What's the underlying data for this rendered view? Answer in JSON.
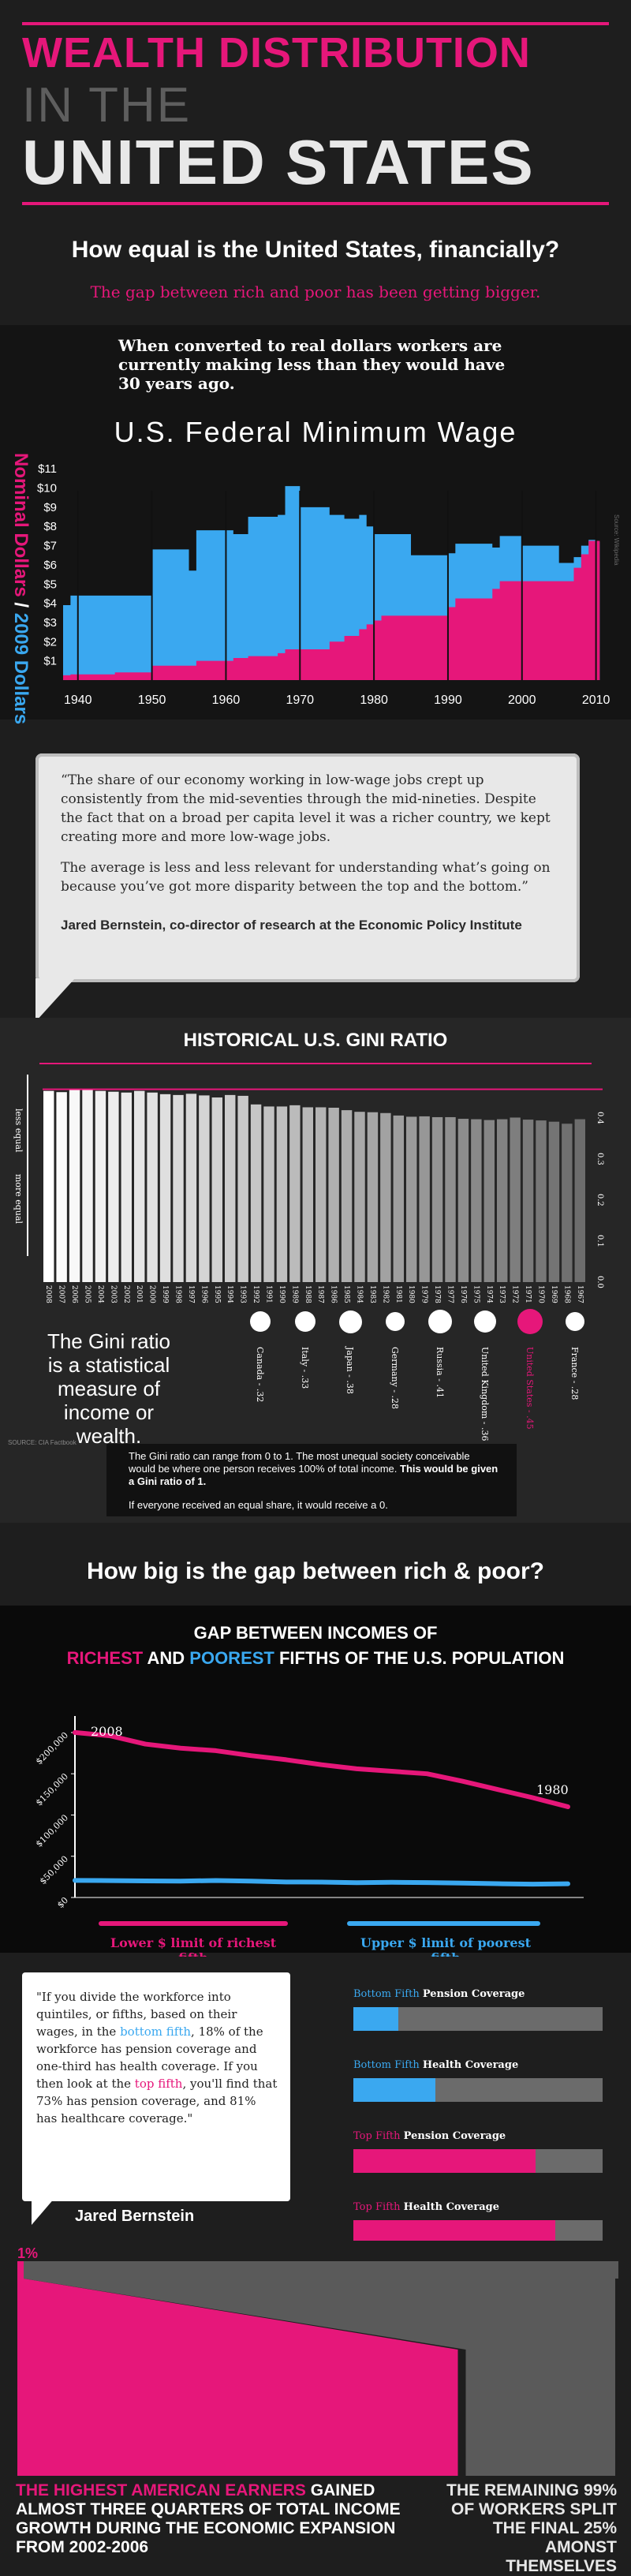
{
  "header": {
    "title_line1": "WEALTH DISTRIBUTION",
    "title_line2": "IN THE",
    "title_line3": "UNITED STATES"
  },
  "intro": {
    "question": "How equal is the United States, financially?",
    "subtitle": "The gap between rich and poor has been getting bigger.",
    "wage_note": "When converted to real dollars workers are currently making less than they would have 30 years ago."
  },
  "wage_chart": {
    "title": "U.S. Federal Minimum Wage",
    "ylabel_nominal": "Nominal Dollars",
    "ylabel_sep": " / ",
    "ylabel_real": "2009 Dollars",
    "source": "Source: Wikipedia",
    "colors": {
      "real": "#3aa8f0",
      "nominal": "#e6177a"
    }
  },
  "chart_data": [
    {
      "type": "area",
      "title": "U.S. Federal Minimum Wage",
      "ylabel": "Nominal Dollars / 2009 Dollars",
      "x": [
        1938,
        1939,
        1945,
        1950,
        1955,
        1956,
        1961,
        1963,
        1967,
        1968,
        1970,
        1974,
        1976,
        1978,
        1979,
        1980,
        1981,
        1985,
        1990,
        1991,
        1996,
        1997,
        2000,
        2005,
        2007,
        2008,
        2009,
        2010
      ],
      "series": [
        {
          "name": "2009 Dollars",
          "values": [
            3.9,
            4.4,
            4.4,
            6.8,
            5.7,
            7.8,
            7.6,
            8.5,
            8.6,
            10.1,
            9.0,
            8.6,
            8.4,
            8.6,
            8.0,
            7.6,
            7.6,
            6.5,
            6.6,
            7.1,
            6.9,
            7.5,
            7.0,
            6.1,
            6.4,
            7.0,
            7.3,
            7.2
          ]
        },
        {
          "name": "Nominal Dollars",
          "values": [
            0.25,
            0.3,
            0.4,
            0.75,
            0.75,
            1.0,
            1.15,
            1.25,
            1.4,
            1.6,
            1.6,
            2.0,
            2.3,
            2.65,
            2.9,
            3.1,
            3.35,
            3.35,
            3.8,
            4.25,
            4.75,
            5.15,
            5.15,
            5.15,
            5.85,
            6.55,
            7.25,
            7.25
          ]
        }
      ],
      "yticks": [
        "$1",
        "$2",
        "$3",
        "$4",
        "$5",
        "$6",
        "$7",
        "$8",
        "$9",
        "$10",
        "$11"
      ],
      "xticks": [
        "1940",
        "1950",
        "1960",
        "1970",
        "1980",
        "1990",
        "2000",
        "2010"
      ],
      "ylim": [
        0,
        11.5
      ]
    },
    {
      "type": "bar",
      "title": "HISTORICAL U.S. GINI RATIO",
      "categories": [
        "2008",
        "2007",
        "2006",
        "2005",
        "2004",
        "2003",
        "2002",
        "2001",
        "2000",
        "1999",
        "1998",
        "1997",
        "1996",
        "1995",
        "1994",
        "1993",
        "1992",
        "1991",
        "1990",
        "1989",
        "1988",
        "1987",
        "1986",
        "1985",
        "1984",
        "1983",
        "1982",
        "1981",
        "1980",
        "1979",
        "1978",
        "1977",
        "1976",
        "1975",
        "1974",
        "1973",
        "1972",
        "1971",
        "1970",
        "1969",
        "1968",
        "1967"
      ],
      "values": [
        0.466,
        0.463,
        0.47,
        0.469,
        0.466,
        0.464,
        0.462,
        0.466,
        0.462,
        0.458,
        0.456,
        0.459,
        0.455,
        0.45,
        0.456,
        0.454,
        0.433,
        0.428,
        0.428,
        0.431,
        0.426,
        0.426,
        0.425,
        0.419,
        0.415,
        0.414,
        0.412,
        0.406,
        0.403,
        0.404,
        0.402,
        0.402,
        0.398,
        0.397,
        0.395,
        0.397,
        0.401,
        0.396,
        0.394,
        0.391,
        0.386,
        0.397
      ],
      "yticks": [
        "0.0",
        "0.1",
        "0.2",
        "0.3",
        "0.4"
      ],
      "ylim": [
        0,
        0.5
      ]
    },
    {
      "type": "line",
      "title": "GAP BETWEEN INCOMES OF RICHEST AND POOREST FIFTHS OF THE U.S. POPULATION",
      "x": [
        2008,
        2006,
        2004,
        2002,
        2000,
        1998,
        1996,
        1994,
        1992,
        1990,
        1988,
        1986,
        1984,
        1982,
        1980
      ],
      "series": [
        {
          "name": "Lower $ limit of richest fifth",
          "values": [
            200000,
            196000,
            186000,
            181000,
            178000,
            172000,
            167000,
            161000,
            156000,
            153000,
            150000,
            141000,
            131000,
            121000,
            110000
          ]
        },
        {
          "name": "Upper $ limit of poorest fifth",
          "values": [
            20700,
            20500,
            20100,
            19800,
            20600,
            19800,
            18800,
            18600,
            17900,
            18400,
            18100,
            17500,
            16700,
            16200,
            16600
          ]
        }
      ],
      "yticks": [
        "$0",
        "$50,000",
        "$100,000",
        "$150,000",
        "$200,000"
      ],
      "ylim": [
        0,
        220000
      ]
    }
  ],
  "quote1": {
    "p1": "“The share of our economy working in low-wage jobs crept up consistently from the mid-seventies through the mid-nineties. Despite the fact that on a broad per capita level it was a richer country, we kept creating more and more low-wage jobs.",
    "p2": "The average is less and less relevant for understanding what’s going on because you’ve got more disparity between the top and the bottom.”",
    "attribution": "Jared Bernstein, co-director of research at the Economic Policy Institute"
  },
  "gini": {
    "title": "HISTORICAL U.S. GINI RATIO",
    "less_equal": "less equal",
    "more_equal": "more equal",
    "definition": "The Gini ratio is a statistical measure of income or wealth.",
    "source": "SOURCE: CIA Factbook",
    "note1": "The Gini ratio can range from 0 to 1. The most unequal society conceivable would be where one person receives 100% of total income.",
    "note1_bold": "This would be given a Gini ratio of 1.",
    "note2": "If everyone received an equal share, it would receive a 0.",
    "countries": [
      {
        "label": "Canada - .32",
        "value": 0.32,
        "color": "#ffffff"
      },
      {
        "label": "Italy - .33",
        "value": 0.33,
        "color": "#ffffff"
      },
      {
        "label": "Japan - .38",
        "value": 0.38,
        "color": "#ffffff"
      },
      {
        "label": "Germany - .28",
        "value": 0.28,
        "color": "#ffffff"
      },
      {
        "label": "Russia - .41",
        "value": 0.41,
        "color": "#ffffff"
      },
      {
        "label": "United Kingdom - .36",
        "value": 0.36,
        "color": "#ffffff"
      },
      {
        "label": "United States - .45",
        "value": 0.45,
        "color": "#e6177a"
      },
      {
        "label": "France - .28",
        "value": 0.28,
        "color": "#ffffff"
      }
    ]
  },
  "gap": {
    "question": "How big is the gap between rich & poor?",
    "chart_title_1": "GAP BETWEEN INCOMES OF",
    "chart_title_richest": "RICHEST",
    "chart_title_and": " AND ",
    "chart_title_poorest": "POOREST",
    "chart_title_2": " FIFTHS OF THE U.S. POPULATION",
    "label_start": "2008",
    "label_end": "1980",
    "legend_rich": "Lower $ limit of richest fifth",
    "legend_poor": "Upper $ limit of poorest fifth"
  },
  "quote2": {
    "text_a": "\"If you divide the workforce into quintiles, or fifths, based on their wages, in the ",
    "text_bottom": "bottom fifth",
    "text_b": ", 18% of the workforce has pension coverage and one-third has health coverage. If you then look at the ",
    "text_top": "top fifth",
    "text_c": ", you'll find that 73% has pension coverage, and 81% has healthcare coverage.\"",
    "attribution": "Jared Bernstein"
  },
  "coverage": [
    {
      "prefix": "Bottom Fifth ",
      "kind": "Pension Coverage",
      "value": 0.18,
      "color": "#3aa8f0"
    },
    {
      "prefix": "Bottom Fifth ",
      "kind": "Health Coverage",
      "value": 0.33,
      "color": "#3aa8f0"
    },
    {
      "prefix": "Top Fifth ",
      "kind": "Pension Coverage",
      "value": 0.73,
      "color": "#e6177a"
    },
    {
      "prefix": "Top Fifth ",
      "kind": "Health Coverage",
      "value": 0.81,
      "color": "#e6177a"
    }
  ],
  "growth": {
    "one_percent": "1%",
    "left_a": "THE HIGHEST AMERICAN EARNERS",
    "left_b": " GAINED ALMOST THREE QUARTERS OF TOTAL INCOME GROWTH DURING THE ECONOMIC EXPANSION FROM 2002-2006",
    "right": "THE REMAINING 99% OF WORKERS SPLIT THE FINAL 25% AMONST THEMSELVES",
    "share_top": 0.75
  }
}
